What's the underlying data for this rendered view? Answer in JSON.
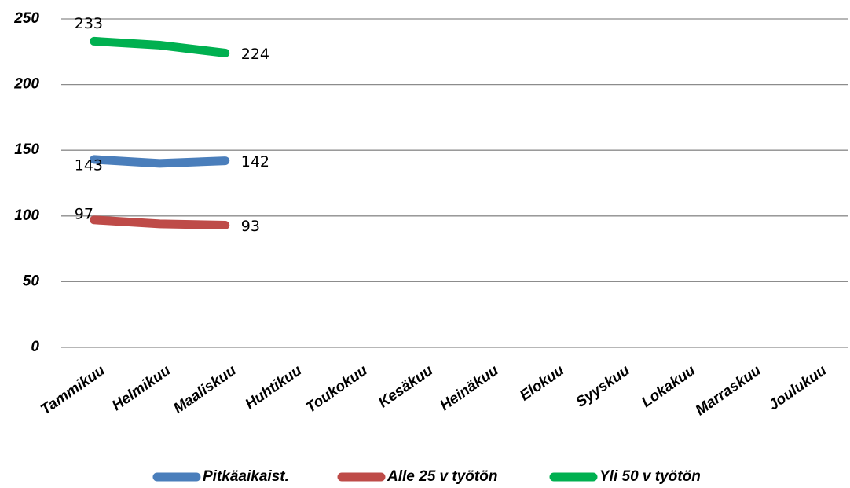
{
  "chart_data": {
    "type": "line",
    "categories": [
      "Tammikuu",
      "Helmikuu",
      "Maaliskuu",
      "Huhtikuu",
      "Toukokuu",
      "Kesäkuu",
      "Heinäkuu",
      "Elokuu",
      "Syyskuu",
      "Lokakuu",
      "Marraskuu",
      "Joulukuu"
    ],
    "series": [
      {
        "name": "Pitkäaikaist.",
        "color": "#4a7ebb",
        "values": [
          143,
          140,
          142,
          null,
          null,
          null,
          null,
          null,
          null,
          null,
          null,
          null
        ]
      },
      {
        "name": "Alle 25 v työtön",
        "color": "#be4b48",
        "values": [
          97,
          94,
          93,
          null,
          null,
          null,
          null,
          null,
          null,
          null,
          null,
          null
        ]
      },
      {
        "name": "Yli 50 v työtön",
        "color": "#00b050",
        "values": [
          233,
          230,
          224,
          null,
          null,
          null,
          null,
          null,
          null,
          null,
          null,
          null
        ]
      }
    ],
    "ylim": [
      0,
      250
    ],
    "yticks": [
      0,
      50,
      100,
      150,
      200,
      250
    ],
    "grid": true,
    "legend": "bottom"
  }
}
